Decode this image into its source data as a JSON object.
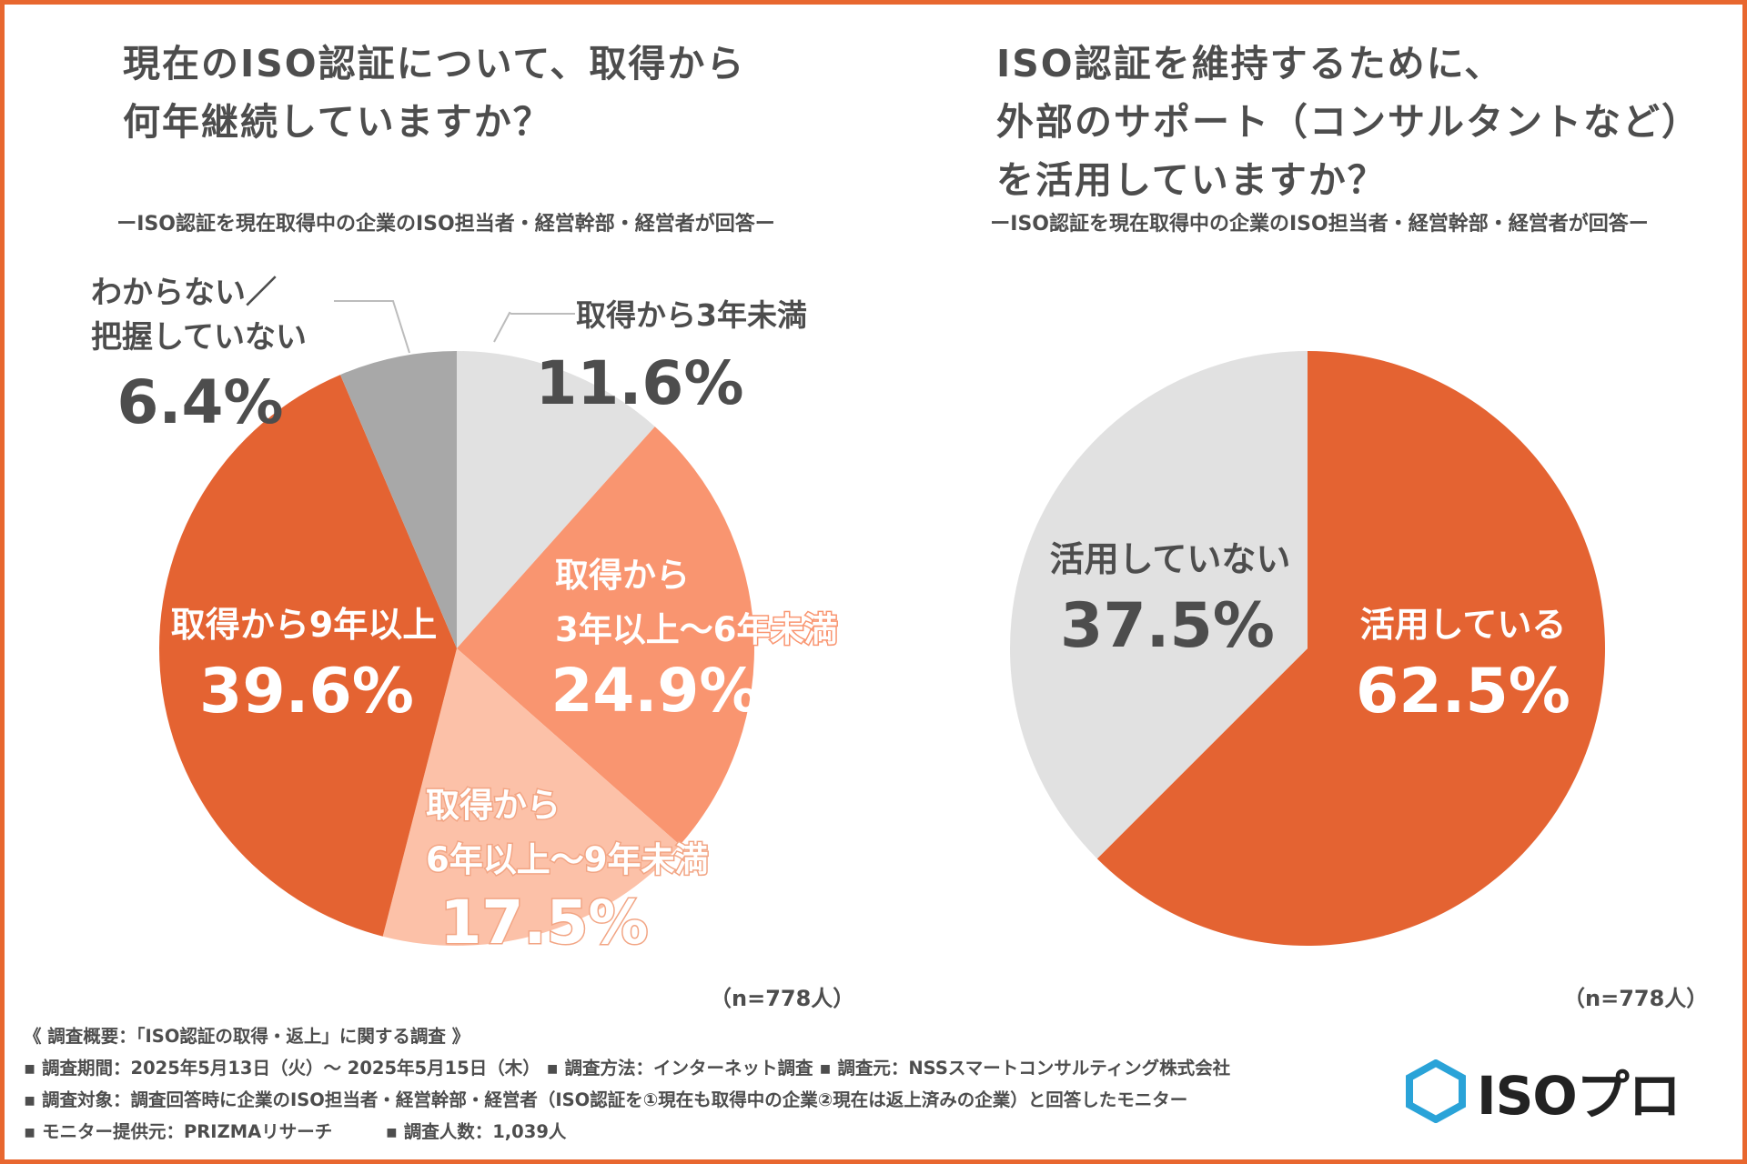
{
  "charts": [
    {
      "title_lines": [
        "現在のISO認証について、取得から",
        "何年継続していますか？"
      ],
      "subtitle": "ーISO認証を現在取得中の企業のISO担当者・経営幹部・経営者が回答ー",
      "n_label": "（n=778人）"
    },
    {
      "title_lines": [
        "ISO認証を維持するために、",
        "外部のサポート（コンサルタントなど）",
        "を活用していますか？"
      ],
      "subtitle": "ーISO認証を現在取得中の企業のISO担当者・経営幹部・経営者が回答ー",
      "n_label": "（n=778人）"
    }
  ],
  "chart_data": [
    {
      "type": "pie",
      "title": "現在のISO認証について、取得から何年継続していますか？",
      "slices": [
        {
          "label_lines": [
            "取得から3年未満"
          ],
          "value": 11.6,
          "value_label": "11.6%",
          "color": "#e1e1e1"
        },
        {
          "label_lines": [
            "取得から",
            "3年以上〜6年未満"
          ],
          "value": 24.9,
          "value_label": "24.9%",
          "color": "#f99570"
        },
        {
          "label_lines": [
            "取得から",
            "6年以上〜9年未満"
          ],
          "value": 17.5,
          "value_label": "17.5%",
          "color": "#fcc1a8"
        },
        {
          "label_lines": [
            "取得から9年以上"
          ],
          "value": 39.6,
          "value_label": "39.6%",
          "color": "#e46332"
        },
        {
          "label_lines": [
            "わからない／",
            "把握していない"
          ],
          "value": 6.4,
          "value_label": "6.4%",
          "color": "#a8a8a8"
        }
      ]
    },
    {
      "type": "pie",
      "title": "ISO認証を維持するために、外部のサポート（コンサルタントなど）を活用していますか？",
      "slices": [
        {
          "label_lines": [
            "活用している"
          ],
          "value": 62.5,
          "value_label": "62.5%",
          "color": "#e46332"
        },
        {
          "label_lines": [
            "活用していない"
          ],
          "value": 37.5,
          "value_label": "37.5%",
          "color": "#e1e1e1"
        }
      ]
    }
  ],
  "footer": {
    "lines": [
      "《 調査概要：「ISO認証の取得・返上」に関する調査 》",
      "▪ 調査期間：2025年5月13日（火）〜 2025年5月15日（木） ▪ 調査方法：インターネット調査 ▪ 調査元：NSSスマートコンサルティング株式会社",
      "▪ 調査対象：調査回答時に企業のISO担当者・経営幹部・経営者（ISO認証を①現在も取得中の企業②現在は返上済みの企業）と回答したモニター",
      "▪ モニター提供元：PRIZMAリサーチ　　　▪ 調査人数：1,039人"
    ]
  },
  "logo": {
    "text": "ISOプロ",
    "color": "#2aa3d8",
    "icon": "hexagon-icon"
  }
}
